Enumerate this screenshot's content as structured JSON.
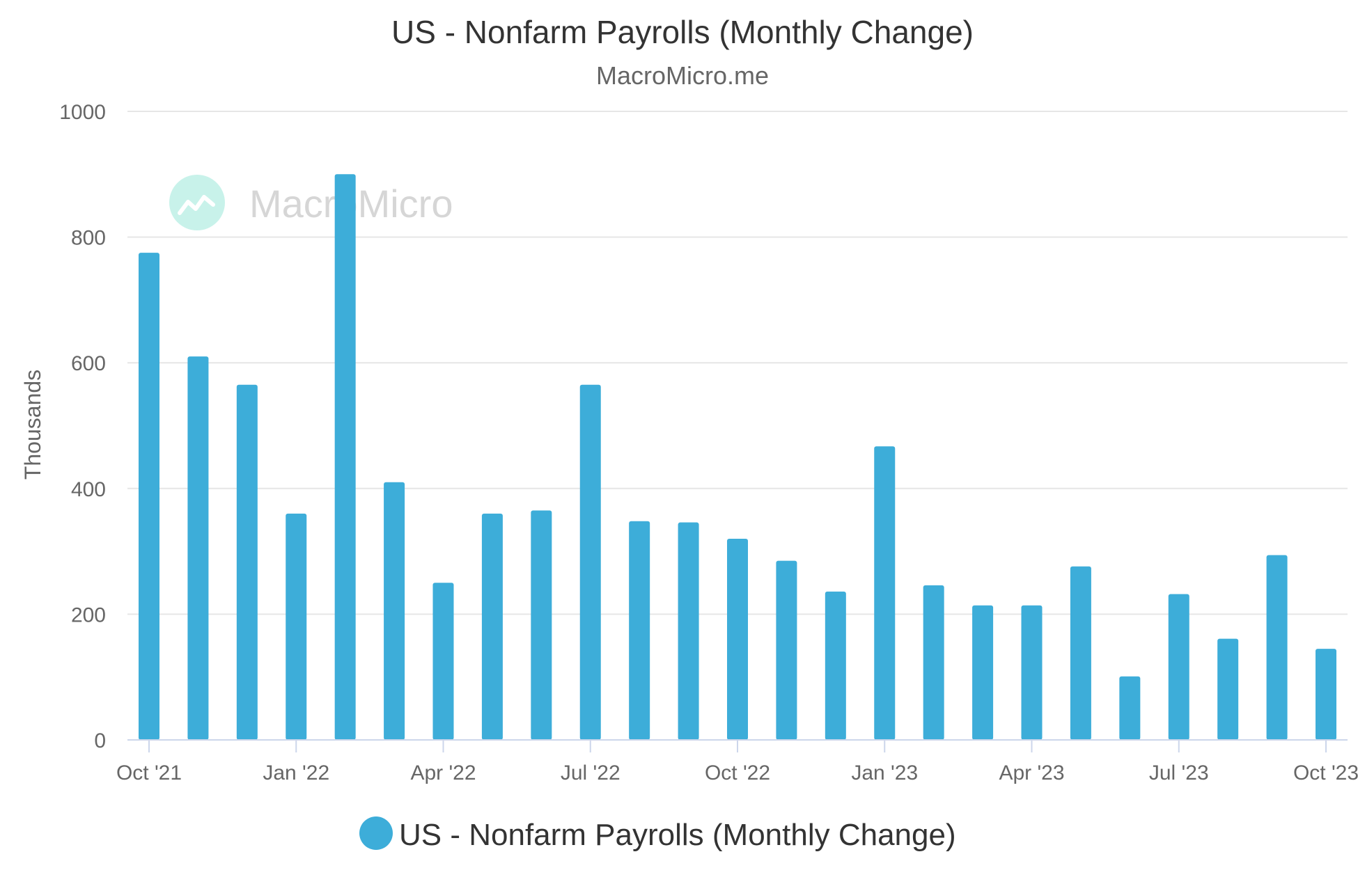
{
  "chart_data": {
    "type": "bar",
    "title": "US - Nonfarm Payrolls (Monthly Change)",
    "subtitle": "MacroMicro.me",
    "ylabel": "Thousands",
    "xlabel": "",
    "ylim": [
      0,
      1000
    ],
    "yticks": [
      0,
      200,
      400,
      600,
      800,
      1000
    ],
    "x_tick_labels": [
      {
        "index": 0,
        "label": "Oct '21"
      },
      {
        "index": 3,
        "label": "Jan '22"
      },
      {
        "index": 6,
        "label": "Apr '22"
      },
      {
        "index": 9,
        "label": "Jul '22"
      },
      {
        "index": 12,
        "label": "Oct '22"
      },
      {
        "index": 15,
        "label": "Jan '23"
      },
      {
        "index": 18,
        "label": "Apr '23"
      },
      {
        "index": 21,
        "label": "Jul '23"
      },
      {
        "index": 24,
        "label": "Oct '23"
      }
    ],
    "categories": [
      "2021-10",
      "2021-11",
      "2021-12",
      "2022-01",
      "2022-02",
      "2022-03",
      "2022-04",
      "2022-05",
      "2022-06",
      "2022-07",
      "2022-08",
      "2022-09",
      "2022-10",
      "2022-11",
      "2022-12",
      "2023-01",
      "2023-02",
      "2023-03",
      "2023-04",
      "2023-05",
      "2023-06",
      "2023-07",
      "2023-08",
      "2023-09",
      "2023-10"
    ],
    "series": [
      {
        "name": "US - Nonfarm Payrolls (Monthly Change)",
        "color": "#3dadd9",
        "values": [
          775,
          610,
          565,
          360,
          900,
          410,
          250,
          360,
          365,
          565,
          348,
          346,
          320,
          285,
          236,
          467,
          246,
          214,
          214,
          276,
          101,
          232,
          161,
          294,
          145
        ]
      }
    ],
    "grid": true,
    "legend": "bottom-center"
  },
  "watermark": {
    "text": "MacroMicro",
    "icon": "chart-line-icon",
    "color": "#c8f2ea"
  }
}
